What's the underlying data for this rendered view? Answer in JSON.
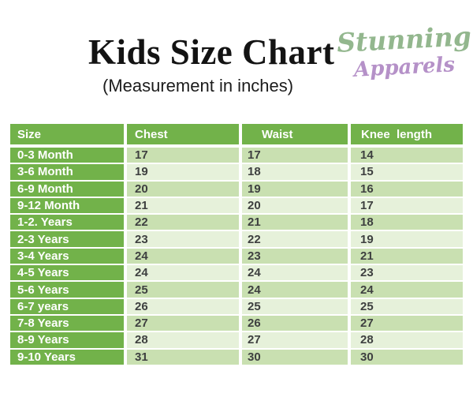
{
  "header": {
    "title": "Kids Size Chart",
    "subtitle": "(Measurement in inches)",
    "logo": {
      "line1": "Stunning",
      "line2": "Apparels",
      "line1_color": "#93b78e",
      "line2_color": "#b591c8"
    }
  },
  "table": {
    "columns": [
      "Size",
      "Chest",
      "Waist",
      "Knee  length"
    ],
    "rows": [
      {
        "size": "0-3 Month",
        "chest": "17",
        "waist": "17",
        "knee": "14"
      },
      {
        "size": "3-6 Month",
        "chest": "19",
        "waist": "18",
        "knee": "15"
      },
      {
        "size": "6-9 Month",
        "chest": "20",
        "waist": "19",
        "knee": "16"
      },
      {
        "size": "9-12 Month",
        "chest": "21",
        "waist": "20",
        "knee": "17"
      },
      {
        "size": "1-2. Years",
        "chest": "22",
        "waist": "21",
        "knee": "18"
      },
      {
        "size": "2-3 Years",
        "chest": "23",
        "waist": "22",
        "knee": "19"
      },
      {
        "size": "3-4 Years",
        "chest": "24",
        "waist": "23",
        "knee": "21"
      },
      {
        "size": "4-5 Years",
        "chest": "24",
        "waist": "24",
        "knee": "23"
      },
      {
        "size": "5-6 Years",
        "chest": "25",
        "waist": "24",
        "knee": "24"
      },
      {
        "size": "6-7 years",
        "chest": "26",
        "waist": "25",
        "knee": "25"
      },
      {
        "size": "7-8 Years",
        "chest": "27",
        "waist": "26",
        "knee": "27"
      },
      {
        "size": "8-9 Years",
        "chest": "28",
        "waist": "27",
        "knee": "28"
      },
      {
        "size": "9-10 Years",
        "chest": "31",
        "waist": "30",
        "knee": "30"
      }
    ],
    "colors": {
      "header_bg": "#72b24a",
      "header_text": "#ffffff",
      "row_odd_bg": "#c9e0b1",
      "row_even_bg": "#e6f1da",
      "cell_text": "#3e4040"
    }
  }
}
